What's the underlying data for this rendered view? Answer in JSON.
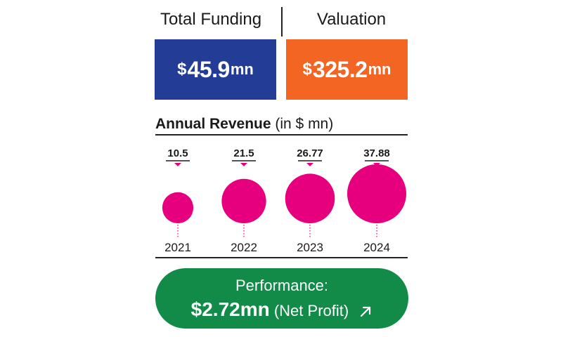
{
  "stats": {
    "funding": {
      "label": "Total Funding",
      "currency": "$",
      "value": "45.9",
      "unit": "mn",
      "color": "#233d96"
    },
    "valuation": {
      "label": "Valuation",
      "currency": "$",
      "value": "325.2",
      "unit": "mn",
      "color": "#f26522"
    }
  },
  "revenue": {
    "title_bold": "Annual Revenue",
    "title_rest": " (in $ mn)"
  },
  "chart_data": {
    "type": "bubble",
    "title": "Annual Revenue (in $ mn)",
    "categories": [
      "2021",
      "2022",
      "2023",
      "2024"
    ],
    "values": [
      10.5,
      21.5,
      26.77,
      37.88
    ],
    "value_labels": [
      "10.5",
      "21.5",
      "26.77",
      "37.88"
    ],
    "color": "#e6007e"
  },
  "performance": {
    "label": "Performance:",
    "value": "$2.72mn",
    "note": " (Net Profit)",
    "color": "#118b47",
    "icon": "arrow-up-right-icon"
  }
}
